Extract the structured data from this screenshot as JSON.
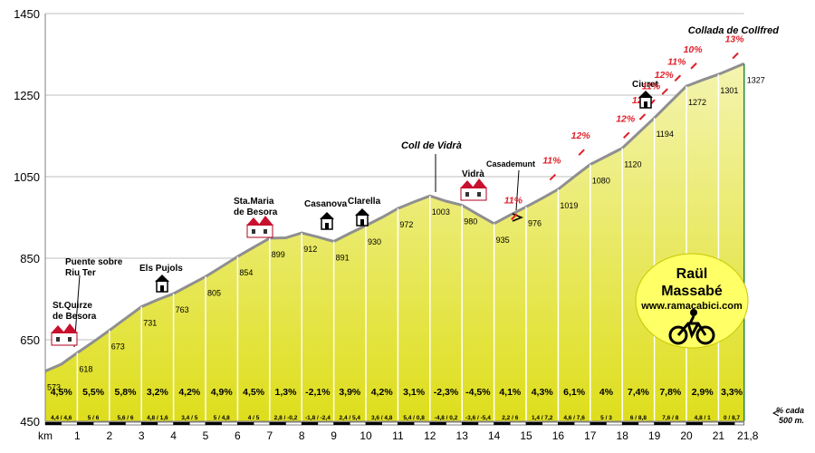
{
  "chart_data": {
    "type": "area",
    "title": "Collada de Collfred",
    "x_unit_label": "km",
    "x_tick_labels": [
      "1",
      "2",
      "3",
      "4",
      "5",
      "6",
      "7",
      "8",
      "9",
      "10",
      "11",
      "12",
      "13",
      "14",
      "15",
      "16",
      "17",
      "18",
      "19",
      "20",
      "21",
      "21,8"
    ],
    "y_ticks": [
      450,
      650,
      850,
      1050,
      1250,
      1450
    ],
    "xlim": [
      0,
      21.8
    ],
    "ylim": [
      450,
      1450
    ],
    "profile": [
      [
        0,
        573
      ],
      [
        0.5,
        590
      ],
      [
        1,
        618
      ],
      [
        1.5,
        645
      ],
      [
        2,
        673
      ],
      [
        2.5,
        702
      ],
      [
        3,
        731
      ],
      [
        3.5,
        748
      ],
      [
        4,
        763
      ],
      [
        4.5,
        784
      ],
      [
        5,
        805
      ],
      [
        5.5,
        829
      ],
      [
        6,
        854
      ],
      [
        6.5,
        877
      ],
      [
        7,
        899
      ],
      [
        7.5,
        900
      ],
      [
        8,
        912
      ],
      [
        8.5,
        902
      ],
      [
        9,
        891
      ],
      [
        9.5,
        911
      ],
      [
        10,
        930
      ],
      [
        10.5,
        950
      ],
      [
        11,
        972
      ],
      [
        11.5,
        988
      ],
      [
        12,
        1003
      ],
      [
        12.5,
        990
      ],
      [
        13,
        980
      ],
      [
        13.5,
        957
      ],
      [
        14,
        935
      ],
      [
        14.5,
        956
      ],
      [
        15,
        976
      ],
      [
        15.5,
        997
      ],
      [
        16,
        1019
      ],
      [
        16.5,
        1050
      ],
      [
        17,
        1080
      ],
      [
        17.5,
        1100
      ],
      [
        18,
        1120
      ],
      [
        18.5,
        1157
      ],
      [
        19,
        1194
      ],
      [
        19.5,
        1233
      ],
      [
        20,
        1272
      ],
      [
        20.5,
        1287
      ],
      [
        21,
        1301
      ],
      [
        21.8,
        1327
      ]
    ],
    "elevation_labels": [
      {
        "km": 0,
        "alt": "573"
      },
      {
        "km": 1,
        "alt": "618"
      },
      {
        "km": 2,
        "alt": "673"
      },
      {
        "km": 3,
        "alt": "731"
      },
      {
        "km": 4,
        "alt": "763"
      },
      {
        "km": 5,
        "alt": "805"
      },
      {
        "km": 6,
        "alt": "854"
      },
      {
        "km": 7,
        "alt": "899"
      },
      {
        "km": 8,
        "alt": "912"
      },
      {
        "km": 9,
        "alt": "891"
      },
      {
        "km": 10,
        "alt": "930"
      },
      {
        "km": 11,
        "alt": "972"
      },
      {
        "km": 12,
        "alt": "1003"
      },
      {
        "km": 13,
        "alt": "980"
      },
      {
        "km": 14,
        "alt": "935"
      },
      {
        "km": 15,
        "alt": "976"
      },
      {
        "km": 16,
        "alt": "1019"
      },
      {
        "km": 17,
        "alt": "1080"
      },
      {
        "km": 18,
        "alt": "1120"
      },
      {
        "km": 19,
        "alt": "1194"
      },
      {
        "km": 20,
        "alt": "1272"
      },
      {
        "km": 21,
        "alt": "1301"
      },
      {
        "km": 21.8,
        "alt": "1327"
      }
    ],
    "segment_gradients": [
      "4,5%",
      "5,5%",
      "5,8%",
      "3,2%",
      "4,2%",
      "4,9%",
      "4,5%",
      "1,3%",
      "-2,1%",
      "3,9%",
      "4,2%",
      "3,1%",
      "-2,3%",
      "-4,5%",
      "4,1%",
      "4,3%",
      "6,1%",
      "4%",
      "7,4%",
      "7,8%",
      "2,9%",
      "3,3%"
    ],
    "half_km_gradients": [
      "4,4 / 4,6",
      "5 / 6",
      "5,6 / 6",
      "4,8 / 1,6",
      "3,4 / 5",
      "5 / 4,8",
      "4 / 5",
      "2,8 / -0,2",
      "-1,8 / -2,4",
      "2,4 / 5,4",
      "3,6 / 4,8",
      "5,4 / 0,8",
      "-4,8 / 0,2",
      "-3,6 / -5,4",
      "2,2 / 6",
      "1,4 / 7,2",
      "4,6 / 7,6",
      "5 / 3",
      "6 / 8,8",
      "7,6 / 8",
      "4,8 / 1",
      "0 / 8,7"
    ],
    "places": [
      {
        "name_lines": [
          "St.Quirze",
          "de Besora"
        ],
        "km": 0.9,
        "icon": "town"
      },
      {
        "name_lines": [
          "Puente sobre",
          "Riu Ter"
        ],
        "km": 0.7,
        "icon": "none"
      },
      {
        "name_lines": [
          "Els Pujols"
        ],
        "km": 3.6,
        "icon": "house"
      },
      {
        "name_lines": [
          "Sta.Maria",
          "de Besora"
        ],
        "km": 6,
        "icon": "town"
      },
      {
        "name_lines": [
          "Casanova"
        ],
        "km": 8.5,
        "icon": "house"
      },
      {
        "name_lines": [
          "Clarella"
        ],
        "km": 9.8,
        "icon": "house"
      },
      {
        "name_lines": [
          "Vidrà"
        ],
        "km": 13.2,
        "icon": "town"
      },
      {
        "name_lines": [
          "Ciuret"
        ],
        "km": 18.5,
        "icon": "house"
      }
    ],
    "passes": [
      {
        "name": "Coll de Vidrà",
        "km": 11.9
      },
      {
        "name": "Collada de Collfred",
        "km": 21.8
      }
    ],
    "casadamunt": "Casademunt",
    "steep_grades": [
      {
        "label": "11%",
        "km": 14.6,
        "alt": 985
      },
      {
        "label": "11%",
        "km": 15.8,
        "alt": 1082
      },
      {
        "label": "12%",
        "km": 16.7,
        "alt": 1143
      },
      {
        "label": "12%",
        "km": 18.1,
        "alt": 1185
      },
      {
        "label": "12%",
        "km": 18.6,
        "alt": 1230
      },
      {
        "label": "11%",
        "km": 18.9,
        "alt": 1265
      },
      {
        "label": "12%",
        "km": 19.3,
        "alt": 1292
      },
      {
        "label": "11%",
        "km": 19.7,
        "alt": 1325
      },
      {
        "label": "10%",
        "km": 20.2,
        "alt": 1355
      },
      {
        "label": "13%",
        "km": 21.5,
        "alt": 1380
      }
    ],
    "note_lines": [
      "% cada",
      "500 m."
    ],
    "colors": {
      "fill_top": "#f4f4b0",
      "fill_bottom": "#dede1c",
      "line": "#8f8f8f",
      "grade": "#e0202a",
      "badge": "#ffff66"
    }
  },
  "badge": {
    "name_line1": "Raül",
    "name_line2": "Massabé",
    "url": "www.ramacabici.com",
    "icon": "cyclist-icon"
  }
}
